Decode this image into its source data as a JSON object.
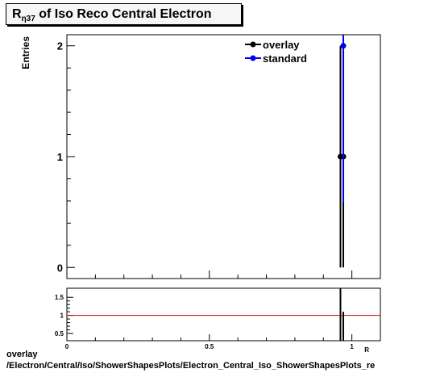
{
  "title": {
    "main": "R",
    "sub": "η37",
    "rest": " of Iso Reco Central  Electron"
  },
  "footer": {
    "line1": "overlay",
    "line2": "/Electron/Central/Iso/ShowerShapesPlots/Electron_Central_Iso_ShowerShapesPlots_re"
  },
  "colors": {
    "overlay": "#000000",
    "standard": "#0000ee",
    "ratio_line": "#cc0000"
  },
  "chart_data": [
    {
      "type": "scatter",
      "ylabel": "Entries",
      "xlim": [
        0,
        1.1
      ],
      "ylim": [
        -0.1,
        2.1
      ],
      "y_ticks": [
        0,
        1,
        2
      ],
      "x_tick_labels": [],
      "legend": {
        "placement": "top-right"
      },
      "series": [
        {
          "name": "overlay",
          "color": "#000000",
          "points": [
            {
              "x": 0.96,
              "y": 1,
              "err": 1
            },
            {
              "x": 0.97,
              "y": 1,
              "err": 1
            }
          ]
        },
        {
          "name": "standard",
          "color": "#0000ee",
          "points": [
            {
              "x": 0.97,
              "y": 2,
              "err": 1.414
            }
          ]
        }
      ]
    },
    {
      "type": "line",
      "xlim": [
        0,
        1.1
      ],
      "ylim": [
        0.3,
        1.75
      ],
      "y_ticks": [
        0.5,
        1,
        1.5
      ],
      "x_ticks": [
        0,
        0.5,
        1
      ],
      "x_tick_labels": [
        "0",
        "0.5",
        "1"
      ],
      "xlabel": "R",
      "reference_line": 1,
      "ratio_bars": [
        {
          "x": 0.96,
          "y_low": 0.3,
          "y_high": 1.75
        },
        {
          "x": 0.97,
          "y_low": 0.3,
          "y_high": 1.1
        }
      ]
    }
  ]
}
